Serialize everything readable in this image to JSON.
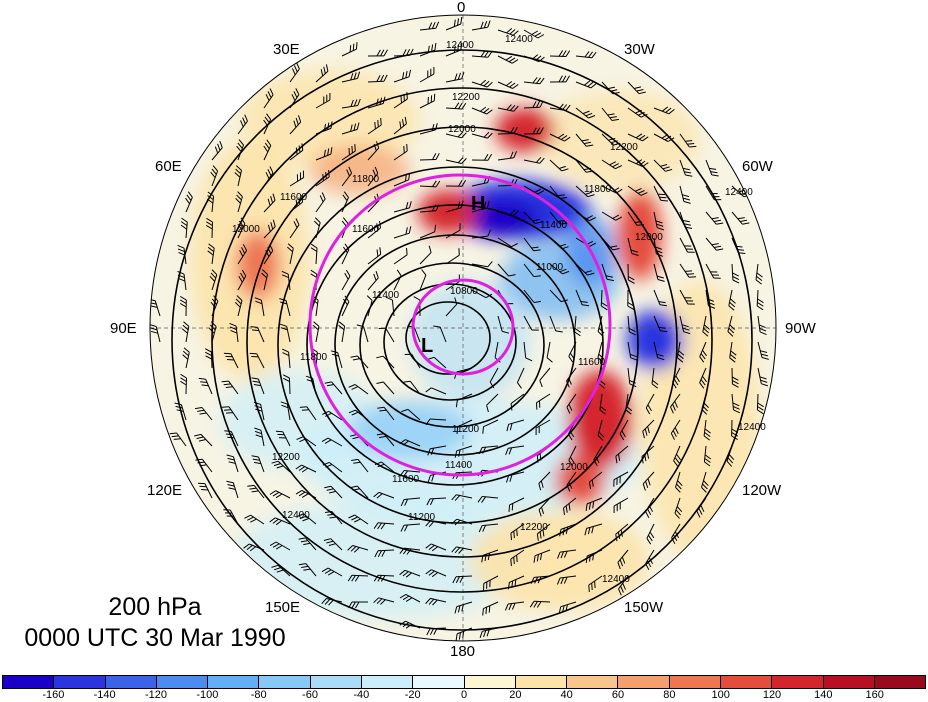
{
  "title": {
    "level": "200 hPa",
    "datetime": "0000 UTC 30 Mar 1990"
  },
  "longitude_labels": [
    "0",
    "30W",
    "60W",
    "90W",
    "120W",
    "150W",
    "180",
    "150E",
    "120E",
    "90E",
    "60E",
    "30E"
  ],
  "contour_labels": [
    "12400",
    "12400",
    "12200",
    "12000",
    "11800",
    "11600",
    "11400",
    "11200",
    "10800",
    "11000",
    "11400",
    "11600",
    "11800",
    "12000",
    "12200",
    "12400",
    "12400",
    "12000",
    "11600",
    "11400",
    "11200",
    "11600",
    "12000",
    "12200",
    "12400",
    "12400",
    "11800",
    "12200"
  ],
  "pressure_centers": [
    {
      "label": "H",
      "kind": "high"
    },
    {
      "label": "L",
      "kind": "low"
    }
  ],
  "colorbar": {
    "ticks": [
      "-160",
      "-140",
      "-120",
      "-100",
      "-80",
      "-60",
      "-40",
      "-20",
      "0",
      "20",
      "40",
      "60",
      "80",
      "100",
      "120",
      "140",
      "160"
    ],
    "colors": [
      "#1a00c8",
      "#2a35e0",
      "#3a63ea",
      "#4c8bf0",
      "#63aef5",
      "#86c8f7",
      "#aadcf8",
      "#cbeefa",
      "#eaf9fd",
      "#fdf6d2",
      "#fce3a8",
      "#f9c58a",
      "#f5a06c",
      "#ee7752",
      "#e44c3c",
      "#d4252d",
      "#b80f22",
      "#9a0a1c"
    ]
  },
  "colors": {
    "contour": "#000000",
    "ring": "#e020e0"
  }
}
